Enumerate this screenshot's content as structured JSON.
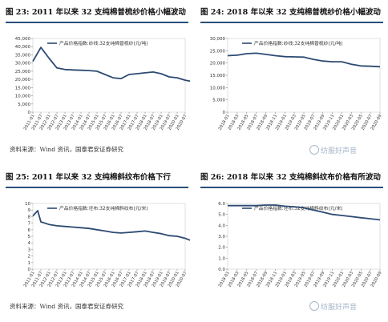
{
  "figures": [
    {
      "id": "fig23",
      "title": "图 23: 2011 年以来 32 支纯棉普梳纱价格小幅波动"
    },
    {
      "id": "fig24",
      "title": "图 24: 2018 年以来 32 支纯棉普梳纱价格小幅波动"
    },
    {
      "id": "fig25",
      "title": "图 25: 2011 年以来 32 支纯棉斜纹布价格下行"
    },
    {
      "id": "fig26",
      "title": "图 26: 2018 年以来 32 支纯棉斜纹布价格有所波动"
    }
  ],
  "sources": {
    "top": "资料来源：Wind 资讯，国泰君安证券研究",
    "bottom": "资料来源：Wind 资讯，国泰君安证券研究"
  },
  "watermark": "纺服好声音",
  "colors": {
    "line": "#2d4a72",
    "rule": "#2b4f7c",
    "axis": "#888888"
  },
  "chart_data": [
    {
      "type": "line",
      "legend": "产品价格指数:纱线:32支纯棉普梳纱(元/吨)",
      "legend_position": "top",
      "ylim": [
        0,
        45000
      ],
      "yticks": [
        0,
        5000,
        10000,
        15000,
        20000,
        25000,
        30000,
        35000,
        40000,
        45000
      ],
      "ytick_labels": [
        "0",
        "5,000",
        "10,000",
        "15,000",
        "20,000",
        "25,000",
        "30,000",
        "35,000",
        "40,000",
        "45,000"
      ],
      "xtick_labels": [
        "2011-01",
        "2011-07",
        "2012-01",
        "2012-07",
        "2013-01",
        "2013-07",
        "2014-01",
        "2014-07",
        "2015-01",
        "2015-07",
        "2016-01",
        "2016-07",
        "2017-01",
        "2017-07",
        "2018-01",
        "2018-07",
        "2019-01",
        "2019-07",
        "2020-01",
        "2020-07"
      ],
      "x": [
        0,
        1,
        2,
        3,
        4,
        5,
        6,
        7,
        8,
        9,
        10,
        11,
        12,
        13,
        14,
        15,
        16,
        17,
        18,
        19,
        19.6
      ],
      "y": [
        31000,
        39500,
        33000,
        27000,
        26000,
        25800,
        25600,
        25400,
        25000,
        23000,
        21000,
        20500,
        23000,
        23500,
        24000,
        24500,
        23500,
        21500,
        21000,
        19500,
        19000
      ]
    },
    {
      "type": "line",
      "legend": "产品价格指数:纱线:32支纯棉普梳纱(元/吨)",
      "legend_position": "top",
      "ylim": [
        0,
        30000
      ],
      "yticks": [
        0,
        5000,
        10000,
        15000,
        20000,
        25000,
        30000
      ],
      "ytick_labels": [
        "0",
        "5,000",
        "10,000",
        "15,000",
        "20,000",
        "25,000",
        "30,000"
      ],
      "xtick_labels": [
        "2018-01",
        "2018-03",
        "2018-05",
        "2018-07",
        "2018-09",
        "2018-11",
        "2019-01",
        "2019-03",
        "2019-05",
        "2019-07",
        "2019-09",
        "2019-11",
        "2020-01",
        "2020-03",
        "2020-05",
        "2020-07",
        "2020-09"
      ],
      "x": [
        0,
        1,
        2,
        3,
        4,
        5,
        6,
        7,
        8,
        9,
        10,
        11,
        12,
        13,
        14,
        15,
        16
      ],
      "y": [
        23000,
        23200,
        23800,
        24000,
        23500,
        23000,
        22600,
        22500,
        22400,
        21500,
        20800,
        20500,
        20500,
        19500,
        18800,
        18700,
        18500
      ]
    },
    {
      "type": "line",
      "legend": "产品价格指数:坯布:32支纯棉斜纹布(元/米)",
      "legend_position": "top",
      "ylim": [
        0,
        10
      ],
      "yticks": [
        0,
        1,
        2,
        3,
        4,
        5,
        6,
        7,
        8,
        9,
        10
      ],
      "ytick_labels": [
        "0",
        "1",
        "2",
        "3",
        "4",
        "5",
        "6",
        "7",
        "8",
        "9",
        "10"
      ],
      "xtick_labels": [
        "2011-01",
        "2011-07",
        "2012-01",
        "2012-07",
        "2013-01",
        "2013-07",
        "2014-01",
        "2014-07",
        "2015-01",
        "2015-07",
        "2016-01",
        "2016-07",
        "2017-01",
        "2017-07",
        "2018-01",
        "2018-07",
        "2019-01",
        "2019-07",
        "2020-01",
        "2020-07"
      ],
      "x": [
        0,
        0.6,
        1,
        2,
        3,
        4,
        5,
        6,
        7,
        8,
        9,
        10,
        11,
        12,
        13,
        14,
        15,
        16,
        17,
        18,
        19,
        19.6
      ],
      "y": [
        8.1,
        8.9,
        7.2,
        6.8,
        6.6,
        6.5,
        6.4,
        6.3,
        6.2,
        6.0,
        5.8,
        5.6,
        5.5,
        5.6,
        5.7,
        5.8,
        5.6,
        5.4,
        5.1,
        5.0,
        4.7,
        4.4
      ]
    },
    {
      "type": "line",
      "legend": "产品价格指数:坯布:32支纯棉斜纹布(元/米)",
      "legend_position": "top",
      "ylim": [
        0,
        6
      ],
      "yticks": [
        0,
        1,
        2,
        3,
        4,
        5,
        6
      ],
      "ytick_labels": [
        "0.0",
        "1.0",
        "2.0",
        "3.0",
        "4.0",
        "5.0",
        "6.0"
      ],
      "xtick_labels": [
        "2018-01",
        "2018-03",
        "2018-05",
        "2018-07",
        "2018-09",
        "2018-11",
        "2019-01",
        "2019-03",
        "2019-05",
        "2019-07",
        "2019-09",
        "2019-11",
        "2020-01",
        "2020-03",
        "2020-05",
        "2020-07",
        "2020-09"
      ],
      "x": [
        0,
        1,
        2,
        3,
        4,
        5,
        6,
        7,
        8,
        9,
        10,
        11,
        12,
        13,
        14,
        15,
        16
      ],
      "y": [
        5.8,
        5.8,
        5.8,
        5.8,
        5.85,
        5.85,
        5.75,
        5.7,
        5.6,
        5.4,
        5.2,
        5.0,
        4.9,
        4.8,
        4.7,
        4.6,
        4.5
      ]
    }
  ]
}
